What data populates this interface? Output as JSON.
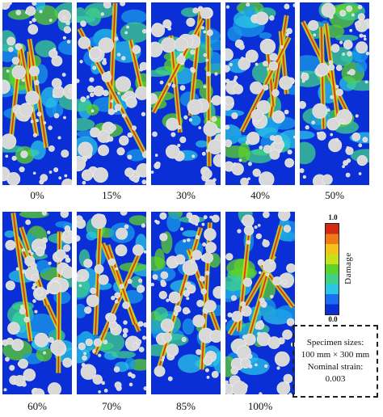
{
  "panels_top": [
    {
      "label": "0%"
    },
    {
      "label": "15%"
    },
    {
      "label": "30%"
    },
    {
      "label": "40%"
    },
    {
      "label": "50%"
    }
  ],
  "panels_bottom": [
    {
      "label": "60%"
    },
    {
      "label": "70%"
    },
    {
      "label": "85%"
    },
    {
      "label": "100%"
    }
  ],
  "colorbar": {
    "max_label": "1.0",
    "min_label": "0.0",
    "title": "Damage",
    "colors": [
      "#0b2fd6",
      "#1a6ff0",
      "#29c6e6",
      "#3fd08a",
      "#5cd22a",
      "#c8e018",
      "#f5c21a",
      "#f07a18",
      "#d42a12"
    ]
  },
  "info_box": {
    "line1": "Specimen sizes:",
    "line2": "100 mm × 300 mm",
    "line3": "Nominal strain:",
    "line4": "0.003"
  }
}
